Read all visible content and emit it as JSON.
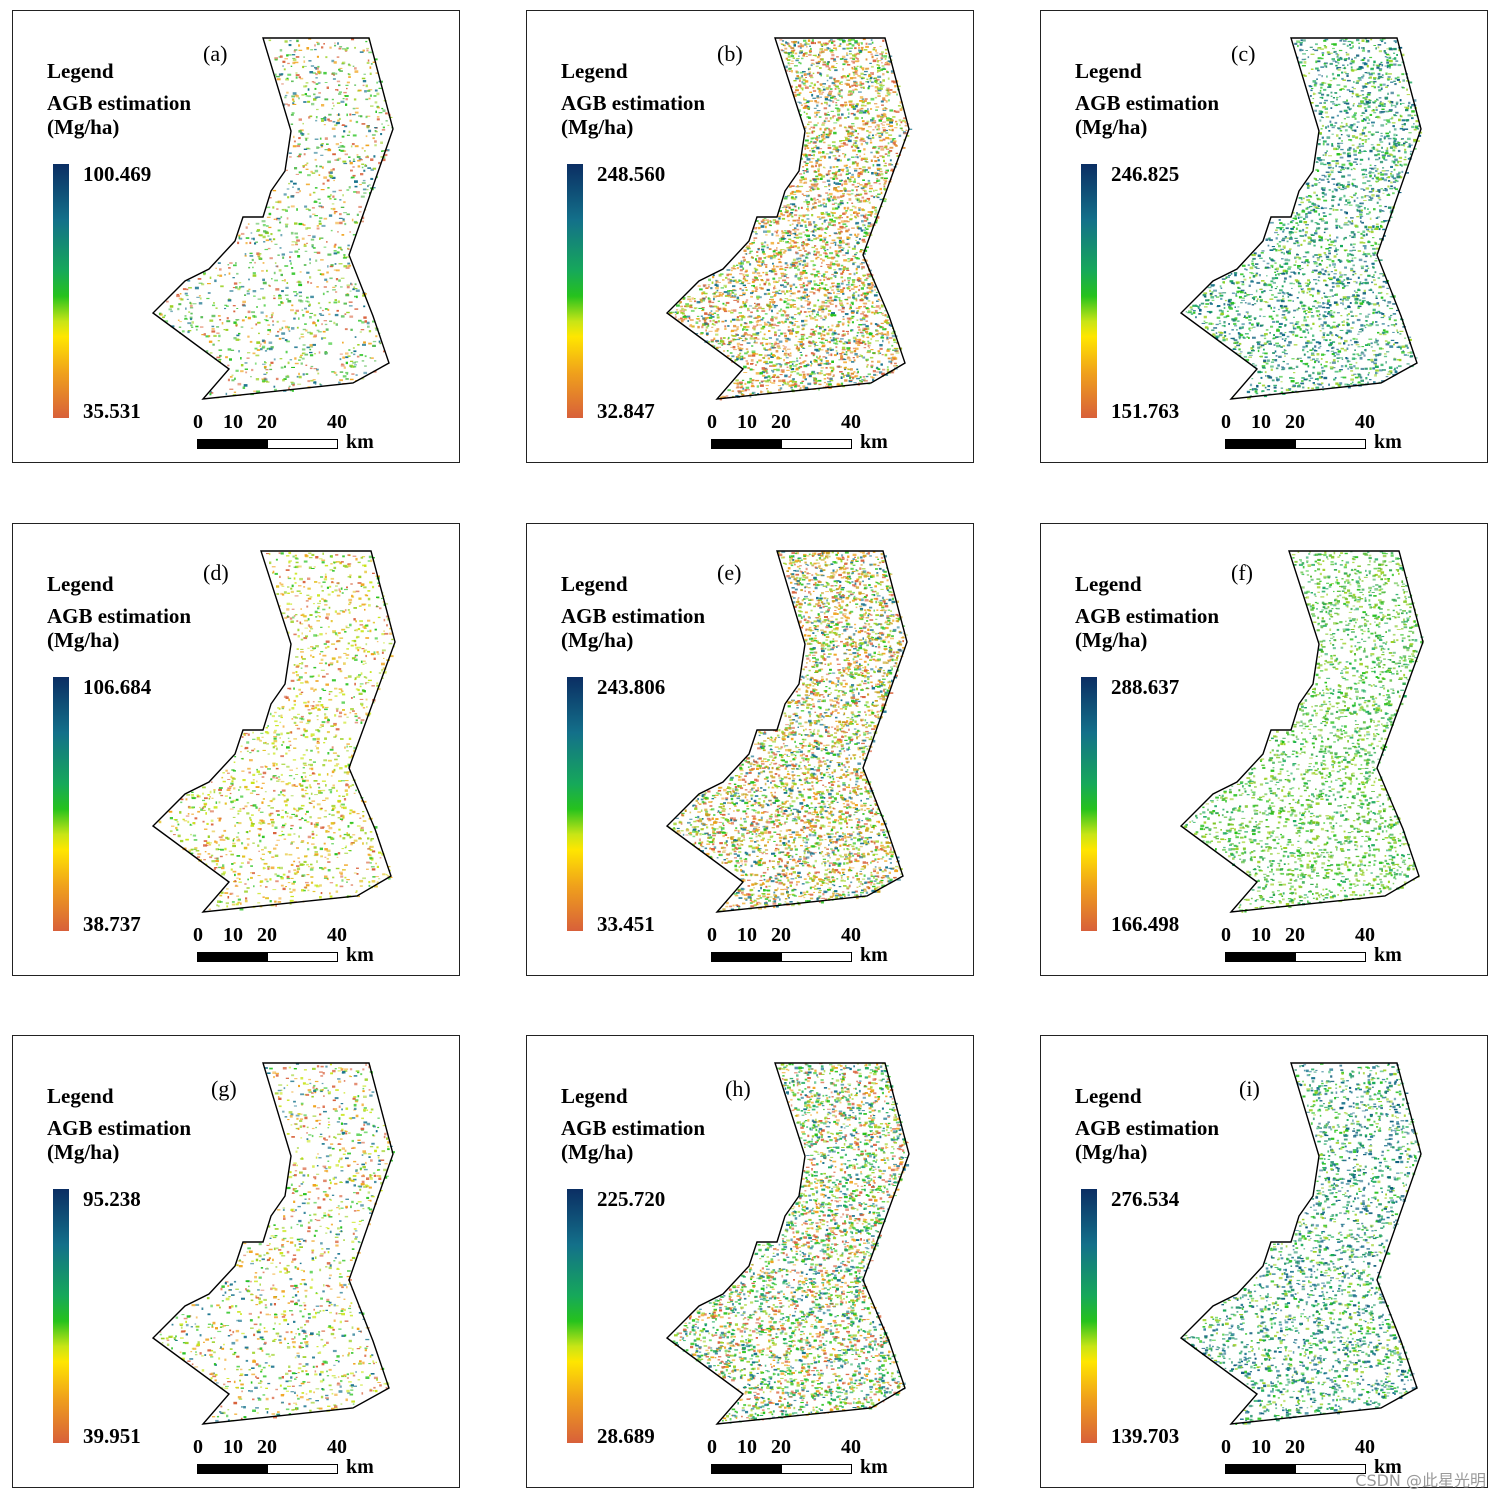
{
  "legend": {
    "title": "Legend",
    "subtitle_line1": "AGB estimation",
    "subtitle_line2": "(Mg/ha)"
  },
  "scale": {
    "ticks": [
      "0",
      "10",
      "20",
      "40"
    ],
    "unit": "km"
  },
  "ramp_colors": [
    "#0b2e63",
    "#13708a",
    "#16a85a",
    "#26c21d",
    "#c8e516",
    "#ffe600",
    "#f0a21b",
    "#d8603a"
  ],
  "panels": [
    {
      "label": "(a)",
      "max": "100.469",
      "min": "35.531",
      "density": 0.3,
      "palette": [
        "#26c21d",
        "#13708a",
        "#9ad021",
        "#f0a21b",
        "#d8603a",
        "#4cb848"
      ]
    },
    {
      "label": "(b)",
      "max": "248.560",
      "min": "32.847",
      "density": 0.85,
      "palette": [
        "#d8603a",
        "#f0a21b",
        "#26c21d",
        "#13708a",
        "#9ad021",
        "#e08a2a"
      ]
    },
    {
      "label": "(c)",
      "max": "246.825",
      "min": "151.763",
      "density": 0.6,
      "palette": [
        "#13708a",
        "#16a85a",
        "#26c21d",
        "#0b5c7a",
        "#1f8f6a",
        "#9ad021"
      ]
    },
    {
      "label": "(d)",
      "max": "106.684",
      "min": "38.737",
      "density": 0.35,
      "palette": [
        "#c8e516",
        "#9ad021",
        "#f0a21b",
        "#d8603a",
        "#26c21d",
        "#e3c020"
      ]
    },
    {
      "label": "(e)",
      "max": "243.806",
      "min": "33.451",
      "density": 0.85,
      "palette": [
        "#f0a21b",
        "#d8603a",
        "#26c21d",
        "#13708a",
        "#c8a018",
        "#9ad021"
      ]
    },
    {
      "label": "(f)",
      "max": "288.637",
      "min": "166.498",
      "density": 0.55,
      "palette": [
        "#26c21d",
        "#4cb82a",
        "#9ad021",
        "#16a85a",
        "#7cc521",
        "#2ea84a"
      ]
    },
    {
      "label": "(g)",
      "max": "95.238",
      "min": "39.951",
      "density": 0.3,
      "palette": [
        "#26c21d",
        "#9ad021",
        "#f0a21b",
        "#13708a",
        "#d8603a",
        "#c8e516"
      ]
    },
    {
      "label": "(h)",
      "max": "225.720",
      "min": "28.689",
      "density": 0.8,
      "palette": [
        "#26c21d",
        "#d8603a",
        "#f0a21b",
        "#16a85a",
        "#9ad021",
        "#13708a"
      ]
    },
    {
      "label": "(i)",
      "max": "276.534",
      "min": "139.703",
      "density": 0.55,
      "palette": [
        "#16a85a",
        "#13708a",
        "#26c21d",
        "#0b5c7a",
        "#9ad021",
        "#1f8f6a"
      ]
    }
  ],
  "watermark": "CSDN @此星光明"
}
